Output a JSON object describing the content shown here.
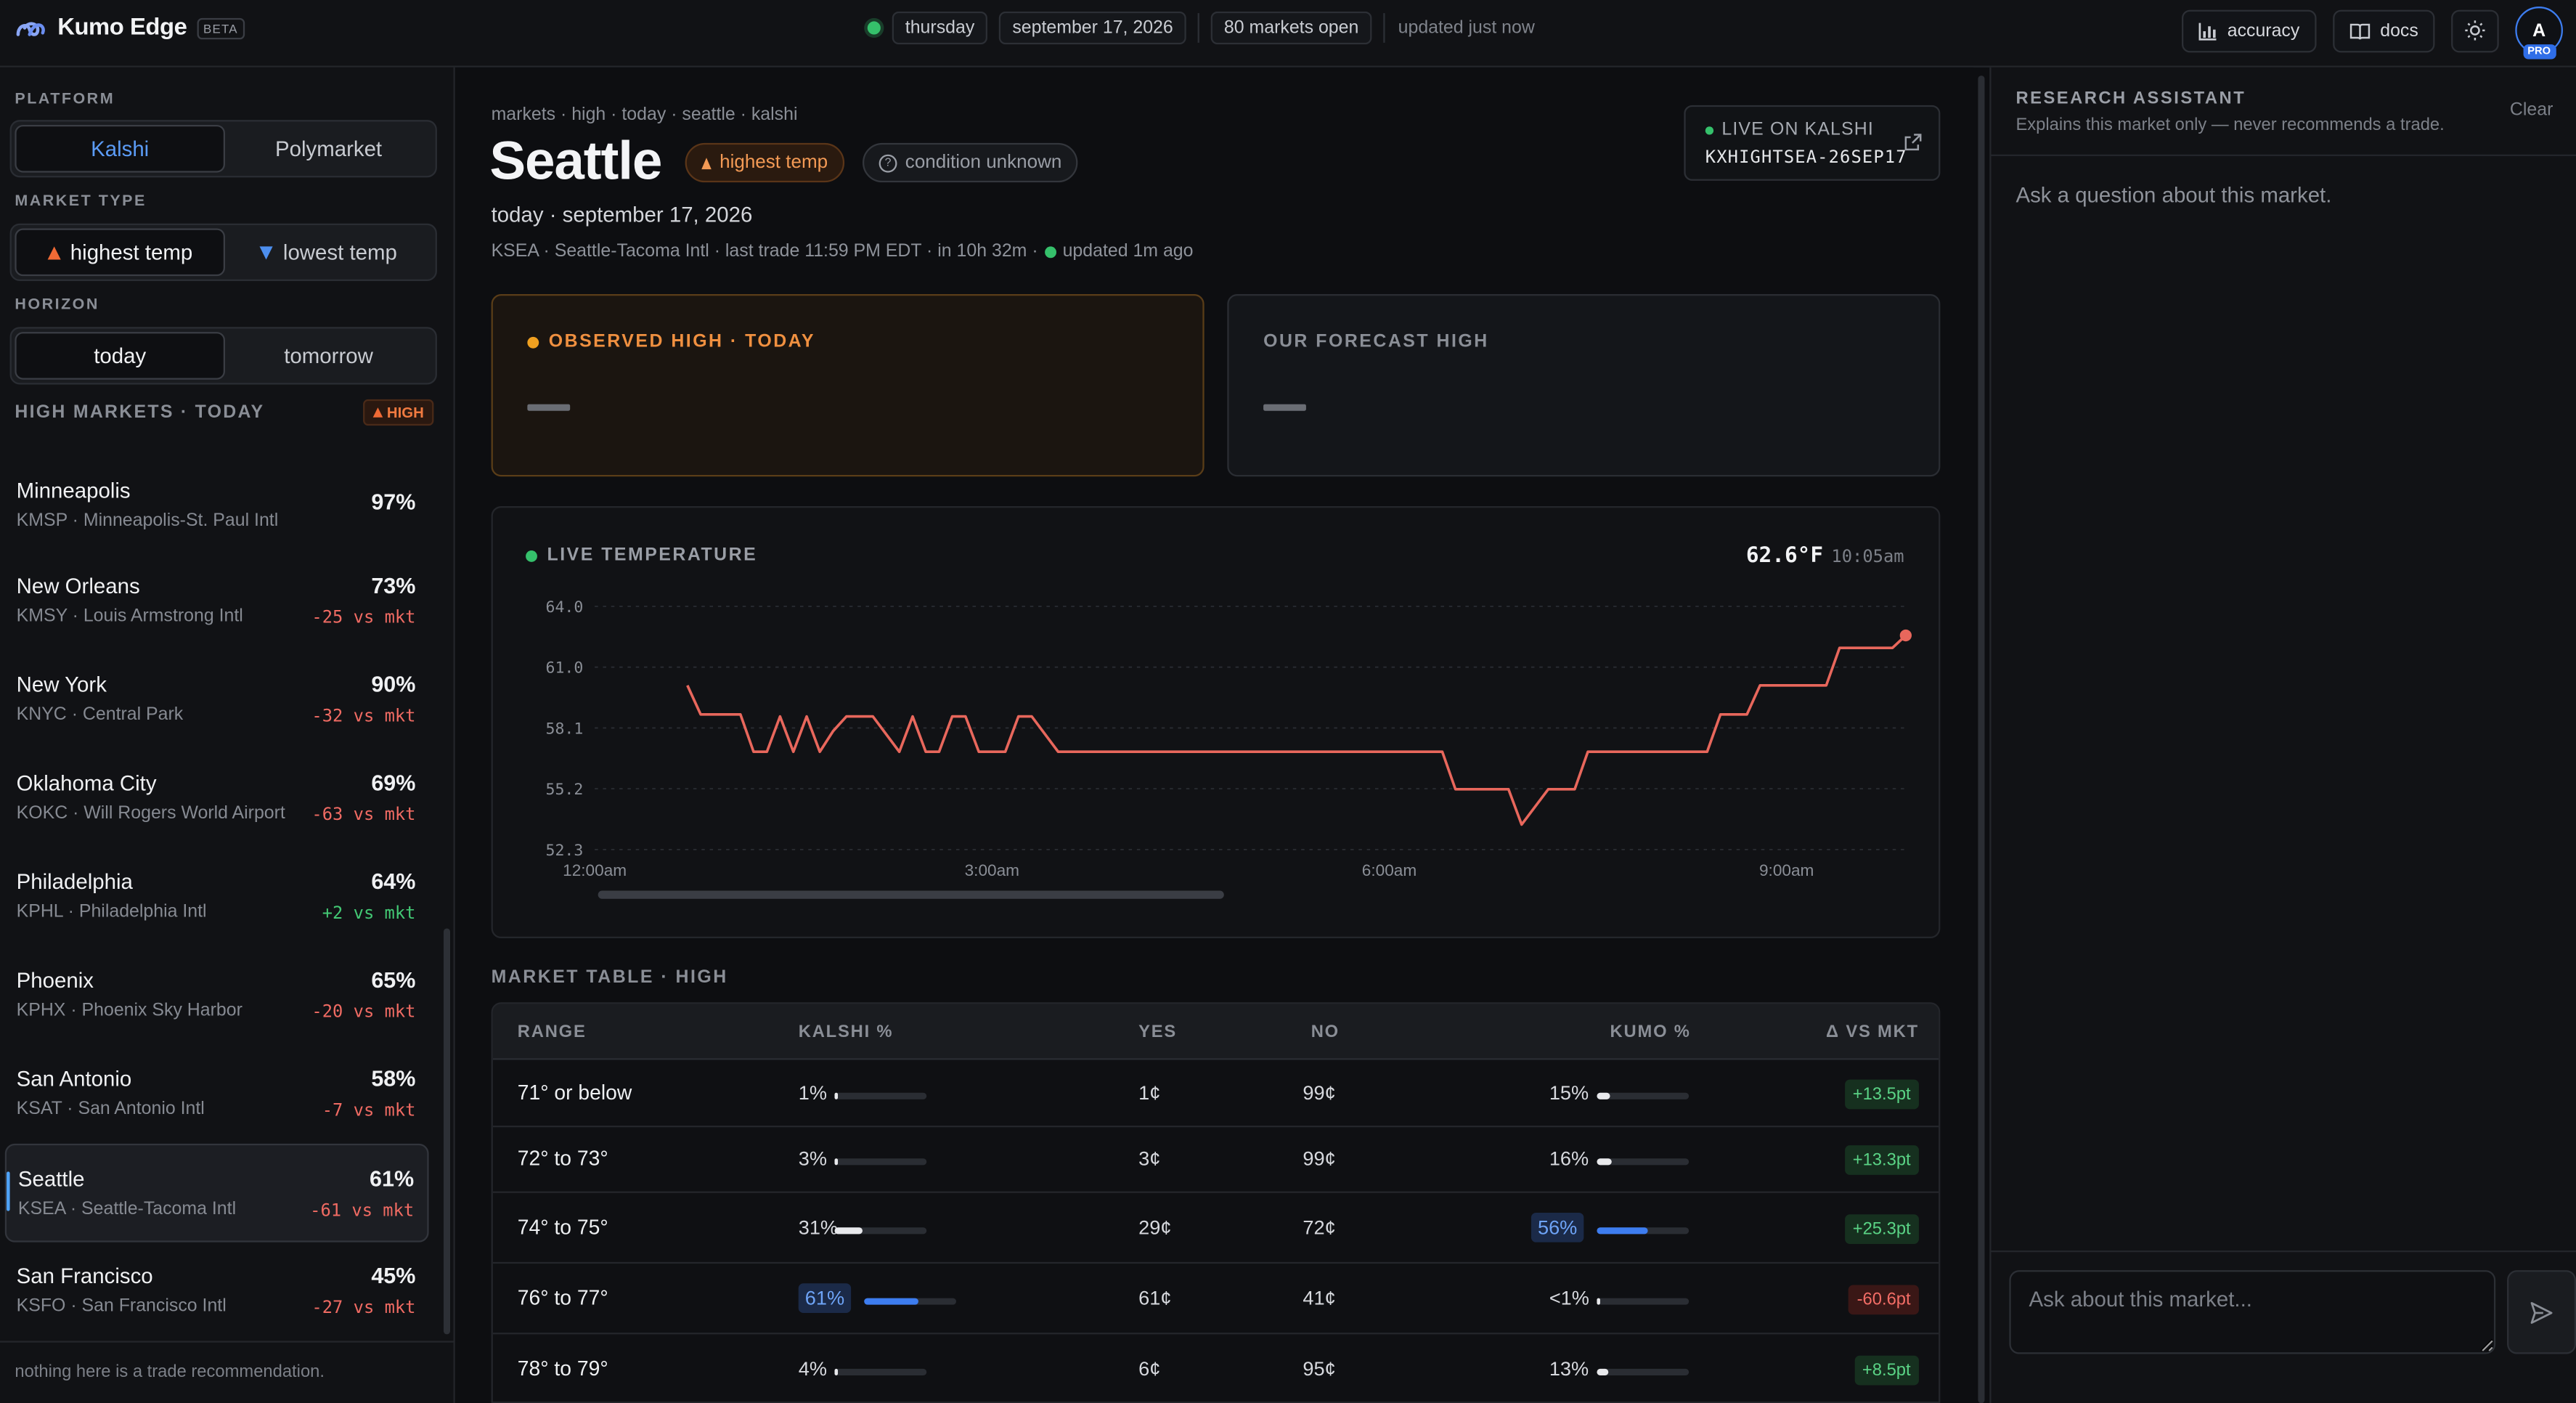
{
  "app": {
    "name": "Kumo Edge",
    "badge": "BETA"
  },
  "topbar": {
    "day": "thursday",
    "date": "september 17, 2026",
    "markets_open": "80 markets open",
    "updated": "updated just now",
    "accuracy_label": "accuracy",
    "docs_label": "docs",
    "avatar_initial": "A",
    "plan_badge": "PRO",
    "status_color": "#35c06b"
  },
  "sidebar": {
    "platform_label": "PLATFORM",
    "platforms": [
      "Kalshi",
      "Polymarket"
    ],
    "platform_selected": "Kalshi",
    "market_type_label": "MARKET TYPE",
    "market_types": [
      "highest temp",
      "lowest temp"
    ],
    "market_type_selected": "highest temp",
    "horizon_label": "HORIZON",
    "horizons": [
      "today",
      "tomorrow"
    ],
    "horizon_selected": "today",
    "list_title": "HIGH MARKETS · TODAY",
    "list_badge": "HIGH",
    "markets": [
      {
        "city": "Minneapolis",
        "sub": "KMSP · Minneapolis-St. Paul Intl",
        "pct": "97%",
        "vs": ""
      },
      {
        "city": "New Orleans",
        "sub": "KMSY · Louis Armstrong Intl",
        "pct": "73%",
        "vs": "-25 vs mkt"
      },
      {
        "city": "New York",
        "sub": "KNYC · Central Park",
        "pct": "90%",
        "vs": "-32 vs mkt"
      },
      {
        "city": "Oklahoma City",
        "sub": "KOKC · Will Rogers World Airport",
        "pct": "69%",
        "vs": "-63 vs mkt"
      },
      {
        "city": "Philadelphia",
        "sub": "KPHL · Philadelphia Intl",
        "pct": "64%",
        "vs": "+2 vs mkt"
      },
      {
        "city": "Phoenix",
        "sub": "KPHX · Phoenix Sky Harbor",
        "pct": "65%",
        "vs": "-20 vs mkt"
      },
      {
        "city": "San Antonio",
        "sub": "KSAT · San Antonio Intl",
        "pct": "58%",
        "vs": "-7 vs mkt"
      },
      {
        "city": "Seattle",
        "sub": "KSEA · Seattle-Tacoma Intl",
        "pct": "61%",
        "vs": "-61 vs mkt"
      },
      {
        "city": "San Francisco",
        "sub": "KSFO · San Francisco Intl",
        "pct": "45%",
        "vs": "-27 vs mkt"
      }
    ],
    "selected_market": "Seattle",
    "footer": "nothing here is a trade recommendation."
  },
  "main": {
    "breadcrumb": "markets · high · today · seattle · kalshi",
    "title": "Seattle",
    "tag_high": "highest temp",
    "tag_condition": "condition unknown",
    "date_line": "today · september 17, 2026",
    "meta_line": "KSEA · Seattle-Tacoma Intl · last trade 11:59 PM EDT · in 10h 32m ·",
    "meta_updated": "updated 1m ago",
    "live_label": "LIVE ON KALSHI",
    "ticker": "KXHIGHTSEA-26SEP17",
    "observed_label": "OBSERVED HIGH · TODAY",
    "forecast_label": "OUR FORECAST HIGH",
    "live_temp_label": "LIVE TEMPERATURE",
    "live_temp_value": "62.6°F",
    "live_temp_time": "10:05am",
    "table_label": "MARKET TABLE · HIGH",
    "table_headers": [
      "RANGE",
      "KALSHI %",
      "YES",
      "NO",
      "KUMO %",
      "Δ VS MKT"
    ],
    "rows": [
      {
        "range": "71° or below",
        "kalshi": "1%",
        "kalshi_v": 1,
        "yes": "1¢",
        "no": "99¢",
        "kumo": "15%",
        "kumo_v": 15,
        "delta": "+13.5pt",
        "delta_sign": "p",
        "hl_kalshi": false,
        "hl_kumo": false
      },
      {
        "range": "72° to 73°",
        "kalshi": "3%",
        "kalshi_v": 3,
        "yes": "3¢",
        "no": "99¢",
        "kumo": "16%",
        "kumo_v": 16,
        "delta": "+13.3pt",
        "delta_sign": "p",
        "hl_kalshi": false,
        "hl_kumo": false
      },
      {
        "range": "74° to 75°",
        "kalshi": "31%",
        "kalshi_v": 31,
        "yes": "29¢",
        "no": "72¢",
        "kumo": "56%",
        "kumo_v": 56,
        "delta": "+25.3pt",
        "delta_sign": "p",
        "hl_kalshi": false,
        "hl_kumo": true
      },
      {
        "range": "76° to 77°",
        "kalshi": "61%",
        "kalshi_v": 61,
        "yes": "61¢",
        "no": "41¢",
        "kumo": "<1%",
        "kumo_v": 0.5,
        "delta": "-60.6pt",
        "delta_sign": "n",
        "hl_kalshi": true,
        "hl_kumo": false
      },
      {
        "range": "78° to 79°",
        "kalshi": "4%",
        "kalshi_v": 4,
        "yes": "6¢",
        "no": "95¢",
        "kumo": "13%",
        "kumo_v": 13,
        "delta": "+8.5pt",
        "delta_sign": "p",
        "hl_kalshi": false,
        "hl_kumo": false
      }
    ]
  },
  "assistant": {
    "title": "RESEARCH ASSISTANT",
    "subtitle": "Explains this market only — never recommends a trade.",
    "clear_label": "Clear",
    "hint": "Ask a question about this market.",
    "input_placeholder": "Ask about this market..."
  },
  "chart_data": {
    "type": "line",
    "title": "LIVE TEMPERATURE",
    "x_ticks": [
      "12:00am",
      "3:00am",
      "6:00am",
      "9:00am"
    ],
    "y_ticks": [
      "64.0",
      "61.0",
      "58.1",
      "55.2",
      "52.3"
    ],
    "ylim": [
      52.3,
      64.0
    ],
    "x_unit": "hours after midnight",
    "xlim": [
      0,
      9.9
    ],
    "line_color": "#e8675c",
    "series": [
      {
        "x": [
          0.7,
          0.8,
          1.1,
          1.2,
          1.3,
          1.4,
          1.5,
          1.6,
          1.7,
          1.8,
          1.9,
          2.0,
          2.1,
          2.3,
          2.4,
          2.5,
          2.6,
          2.7,
          2.8,
          2.9,
          3.1,
          3.2,
          3.3,
          3.5,
          3.6,
          4.5,
          5.0,
          5.5,
          6.4,
          6.5,
          6.9,
          7.0,
          7.2,
          7.3,
          7.4,
          7.5,
          8.0,
          8.4,
          8.5,
          8.7,
          8.8,
          9.0,
          9.3,
          9.4,
          9.8,
          9.9
        ],
        "y": [
          60.2,
          58.8,
          58.8,
          57.0,
          57.0,
          58.7,
          57.0,
          58.7,
          57.0,
          58.0,
          58.7,
          58.7,
          58.7,
          57.0,
          58.7,
          57.0,
          57.0,
          58.7,
          58.7,
          57.0,
          57.0,
          58.7,
          58.7,
          57.0,
          57.0,
          57.0,
          57.0,
          57.0,
          57.0,
          55.2,
          55.2,
          53.5,
          55.2,
          55.2,
          55.2,
          57.0,
          57.0,
          57.0,
          58.8,
          58.8,
          60.2,
          60.2,
          60.2,
          62.0,
          62.0,
          62.6
        ]
      }
    ]
  }
}
